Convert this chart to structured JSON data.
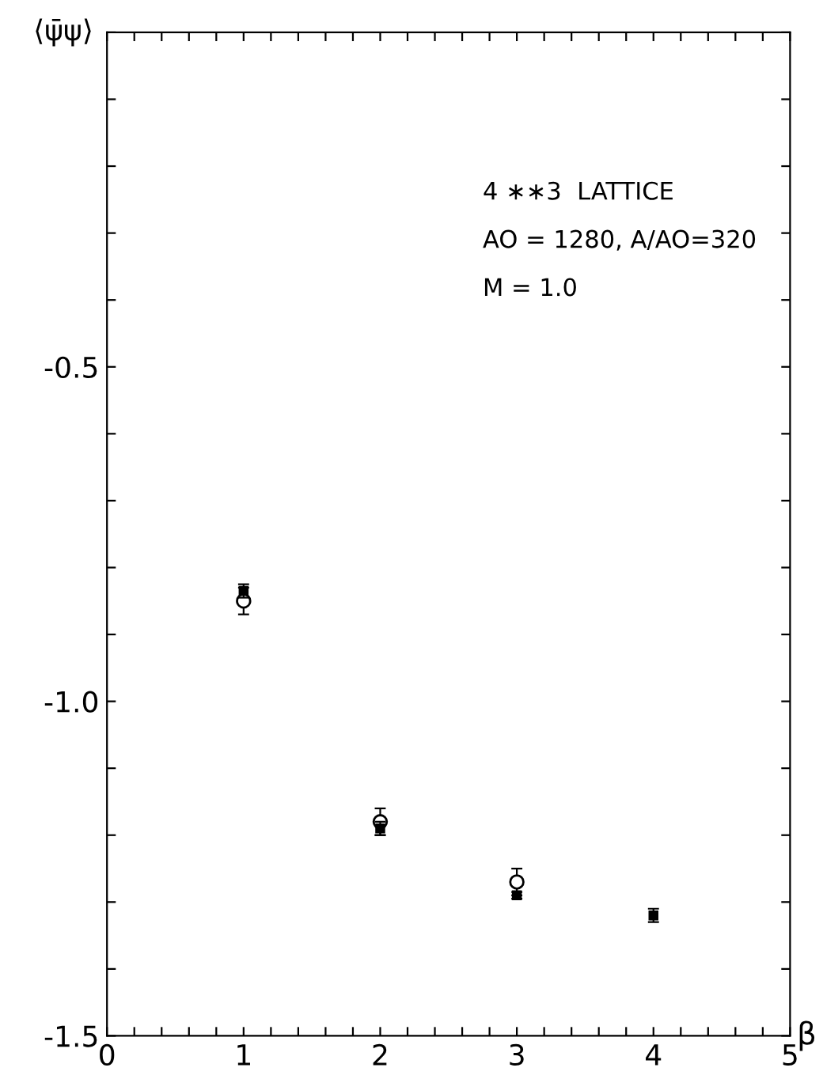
{
  "chart_data": {
    "type": "scatter",
    "xlabel": "β",
    "ylabel": "⟨ψ̄ψ⟩",
    "annotations": [
      "4 ∗∗3  LATTICE",
      "AO = 1280, A/AO=320",
      "M = 1.0"
    ],
    "x": [
      1,
      2,
      3,
      4
    ],
    "series": [
      {
        "color": "#000000",
        "marker": "circle",
        "values": [
          -0.85,
          -1.18,
          -1.27,
          null
        ],
        "errors": [
          0.02,
          0.02,
          0.02,
          null
        ]
      },
      {
        "color": "#000000",
        "marker": "square",
        "values": [
          -0.835,
          -1.19,
          -1.29,
          -1.32
        ],
        "errors": [
          0.01,
          0.01,
          0.005,
          0.01
        ]
      }
    ],
    "xlim": [
      0,
      5
    ],
    "ylim": [
      -1.5,
      0
    ],
    "xticks": [
      0,
      {
        "value": 0.2,
        "label": null
      },
      {
        "value": 0.4,
        "label": null
      },
      {
        "value": 0.6,
        "label": null
      },
      {
        "value": 0.8,
        "label": null
      },
      1,
      {
        "value": 1.2,
        "label": null
      },
      {
        "value": 1.4,
        "label": null
      },
      {
        "value": 1.6,
        "label": null
      },
      {
        "value": 1.8,
        "label": null
      },
      2,
      {
        "value": 2.2,
        "label": null
      },
      {
        "value": 2.4,
        "label": null
      },
      {
        "value": 2.6,
        "label": null
      },
      {
        "value": 2.8,
        "label": null
      },
      3,
      {
        "value": 3.2,
        "label": null
      },
      {
        "value": 3.4,
        "label": null
      },
      {
        "value": 3.6,
        "label": null
      },
      {
        "value": 3.8,
        "label": null
      },
      4,
      {
        "value": 4.2,
        "label": null
      },
      {
        "value": 4.4,
        "label": null
      },
      {
        "value": 4.6,
        "label": null
      },
      {
        "value": 4.8,
        "label": null
      },
      5
    ],
    "yticks": [
      {
        "value": -1.5,
        "label": "-1.5"
      },
      {
        "value": -1.4,
        "label": null
      },
      {
        "value": -1.3,
        "label": null
      },
      {
        "value": -1.2,
        "label": null
      },
      {
        "value": -1.1,
        "label": null
      },
      {
        "value": -1.0,
        "label": "-1.0"
      },
      {
        "value": -0.9,
        "label": null
      },
      {
        "value": -0.8,
        "label": null
      },
      {
        "value": -0.7,
        "label": null
      },
      {
        "value": -0.6,
        "label": null
      },
      {
        "value": -0.5,
        "label": "-0.5"
      },
      {
        "value": -0.4,
        "label": null
      },
      {
        "value": -0.3,
        "label": null
      },
      {
        "value": -0.2,
        "label": null
      },
      {
        "value": -0.1,
        "label": null
      },
      {
        "value": 0,
        "label": null
      }
    ],
    "grid": false,
    "legend": false
  }
}
